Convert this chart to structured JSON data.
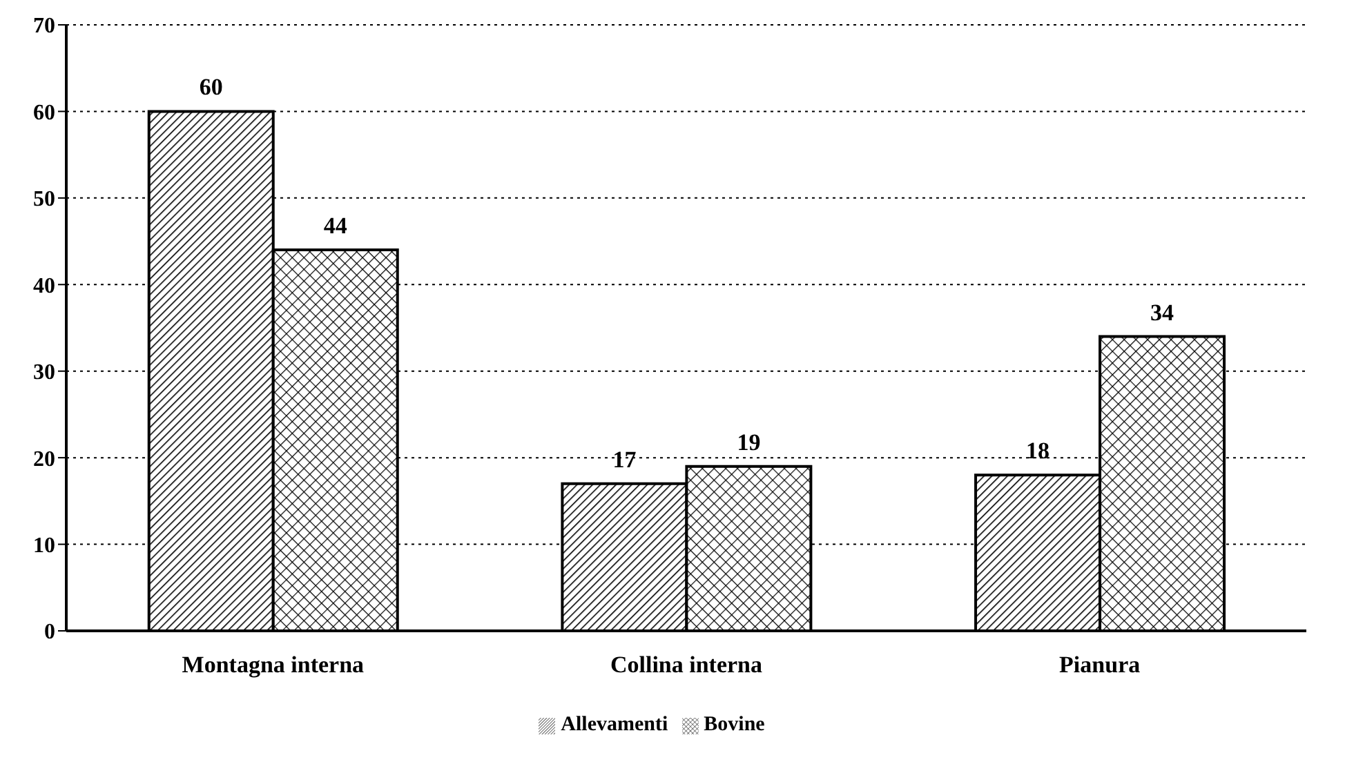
{
  "chart_data": {
    "type": "bar",
    "categories": [
      "Montagna interna",
      "Collina interna",
      "Pianura"
    ],
    "series": [
      {
        "name": "Allevamenti",
        "color": "#000000",
        "values": [
          60,
          17,
          18
        ]
      },
      {
        "name": "Bovine",
        "color": "#000000",
        "values": [
          44,
          19,
          34
        ]
      }
    ],
    "ylim": [
      0,
      70
    ],
    "yticks": [
      0,
      10,
      20,
      30,
      40,
      50,
      60,
      70
    ],
    "grid": "y",
    "legend": "bottom",
    "data_labels": true
  }
}
